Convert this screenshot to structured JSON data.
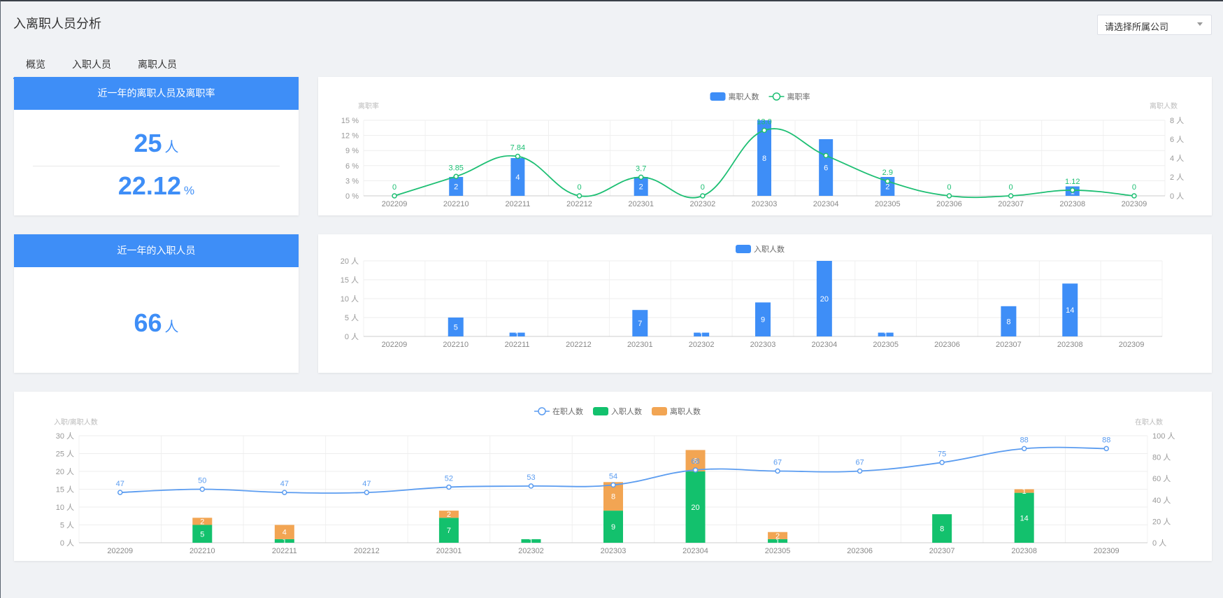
{
  "page": {
    "title": "入离职人员分析"
  },
  "company_select": {
    "placeholder": "请选择所属公司"
  },
  "tabs": [
    {
      "label": "概览",
      "active": true
    },
    {
      "label": "入职人员",
      "active": false
    },
    {
      "label": "离职人员",
      "active": false
    }
  ],
  "leave_card": {
    "title": "近一年的离职人员及离职率",
    "count": "25",
    "count_unit": "人",
    "rate": "22.12",
    "rate_unit": "%"
  },
  "hire_card": {
    "title": "近一年的入职人员",
    "count": "66",
    "count_unit": "人"
  },
  "colors": {
    "blue": "#3e8ef7",
    "green": "#13c16d",
    "orange": "#f2a553",
    "line_green": "#1dbf73",
    "line_blue": "#5b9cf0"
  },
  "chart_data": [
    {
      "id": "leave",
      "type": "bar",
      "categories": [
        "202209",
        "202210",
        "202211",
        "202212",
        "202301",
        "202302",
        "202303",
        "202304",
        "202305",
        "202306",
        "202307",
        "202308",
        "202309"
      ],
      "series": [
        {
          "name": "离职人数",
          "type": "bar",
          "axis": "right",
          "values": [
            0,
            2,
            4,
            0,
            2,
            0,
            8,
            6,
            2,
            0,
            0,
            1,
            0
          ]
        },
        {
          "name": "离职率",
          "type": "line",
          "axis": "left",
          "values": [
            0,
            3.85,
            7.84,
            0,
            3.7,
            0,
            13.0,
            8.0,
            2.9,
            0,
            0,
            1.12,
            0
          ],
          "labels": [
            "0",
            "3.85",
            "7.84",
            "0",
            "3.7",
            "0",
            "13.0",
            "",
            "2.9",
            "0",
            "0",
            "1.12",
            "0"
          ]
        }
      ],
      "y_left": {
        "label": "离职率",
        "ticks": [
          "0 %",
          "3 %",
          "6 %",
          "9 %",
          "12 %",
          "15 %"
        ],
        "range": [
          0,
          15
        ]
      },
      "y_right": {
        "label": "离职人数",
        "ticks": [
          "0 人",
          "2 人",
          "4 人",
          "6 人",
          "8 人"
        ],
        "range": [
          0,
          8
        ]
      },
      "legend": "top-center"
    },
    {
      "id": "hire",
      "type": "bar",
      "categories": [
        "202209",
        "202210",
        "202211",
        "202212",
        "202301",
        "202302",
        "202303",
        "202304",
        "202305",
        "202306",
        "202307",
        "202308",
        "202309"
      ],
      "series": [
        {
          "name": "入职人数",
          "type": "bar",
          "values": [
            0,
            5,
            1,
            0,
            7,
            1,
            9,
            20,
            1,
            0,
            8,
            14,
            0
          ]
        }
      ],
      "y_left": {
        "ticks": [
          "0 人",
          "5 人",
          "10 人",
          "15 人",
          "20 人"
        ],
        "range": [
          0,
          20
        ]
      },
      "legend": "top-center"
    },
    {
      "id": "combined",
      "type": "bar",
      "categories": [
        "202209",
        "202210",
        "202211",
        "202212",
        "202301",
        "202302",
        "202303",
        "202304",
        "202305",
        "202306",
        "202307",
        "202308",
        "202309"
      ],
      "series": [
        {
          "name": "在职人数",
          "type": "line",
          "axis": "right",
          "values": [
            47,
            50,
            47,
            47,
            52,
            53,
            54,
            68,
            67,
            67,
            75,
            88,
            88
          ]
        },
        {
          "name": "入职人数",
          "type": "bar",
          "stack": "a",
          "axis": "left",
          "values": [
            0,
            5,
            1,
            0,
            7,
            1,
            9,
            20,
            1,
            0,
            8,
            14,
            0
          ]
        },
        {
          "name": "离职人数",
          "type": "bar",
          "stack": "a",
          "axis": "left",
          "values": [
            0,
            2,
            4,
            0,
            2,
            0,
            8,
            6,
            2,
            0,
            0,
            1,
            0
          ]
        }
      ],
      "y_left": {
        "label": "入职/离职人数",
        "ticks": [
          "0 人",
          "5 人",
          "10 人",
          "15 人",
          "20 人",
          "25 人",
          "30 人"
        ],
        "range": [
          0,
          30
        ]
      },
      "y_right": {
        "label": "在职人数",
        "ticks": [
          "0 人",
          "20 人",
          "40 人",
          "60 人",
          "80 人",
          "100 人"
        ],
        "range": [
          0,
          100
        ]
      },
      "legend": "top-center"
    }
  ]
}
